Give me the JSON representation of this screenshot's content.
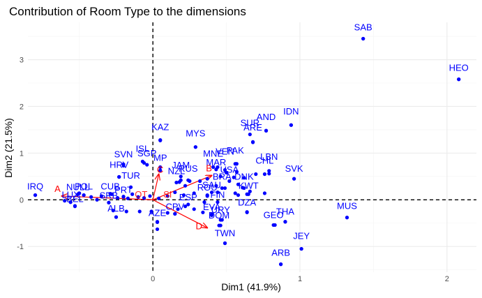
{
  "chart_data": {
    "type": "scatter",
    "title": "Contribution of Room Type to the dimensions",
    "xlabel": "Dim1 (41.9%)",
    "ylabel": "Dim2 (21.5%)",
    "xlim": [
      -0.85,
      2.2
    ],
    "ylim": [
      -1.55,
      3.8
    ],
    "x_ticks": [
      0,
      1,
      2
    ],
    "y_ticks": [
      -1,
      0,
      1,
      2,
      3
    ],
    "grid": true,
    "legend": "none",
    "colors": {
      "points": "#0000ff",
      "arrows": "#ff0000",
      "zero_lines": "#000000",
      "grid": "#ebebeb"
    },
    "points": [
      {
        "label": "SAB",
        "x": 1.43,
        "y": 3.45,
        "dx": 0,
        "dy": -12
      },
      {
        "label": "HEO",
        "x": 2.08,
        "y": 2.58,
        "dx": 0,
        "dy": -12
      },
      {
        "label": "MUS",
        "x": 1.32,
        "y": -0.38,
        "dx": 0,
        "dy": -12
      },
      {
        "label": "JEY",
        "x": 1.01,
        "y": -1.05,
        "dx": 0,
        "dy": -14
      },
      {
        "label": "ARB",
        "x": 0.87,
        "y": -1.38,
        "dx": 0,
        "dy": -12
      },
      {
        "label": "IDN",
        "x": 0.94,
        "y": 1.6,
        "dx": 0,
        "dy": -15
      },
      {
        "label": "AND",
        "x": 0.77,
        "y": 1.48,
        "dx": 0,
        "dy": -15
      },
      {
        "label": "SUR",
        "x": 0.66,
        "y": 1.4,
        "dx": 0,
        "dy": -12
      },
      {
        "label": "ARE",
        "x": 0.68,
        "y": 1.23,
        "dx": 0,
        "dy": -17
      },
      {
        "label": "MYS",
        "x": 0.29,
        "y": 1.13,
        "dx": 0,
        "dy": -15
      },
      {
        "label": "KAZ",
        "x": 0.05,
        "y": 1.27,
        "dx": 0,
        "dy": -15
      },
      {
        "label": "PAK",
        "x": 0.56,
        "y": 0.77,
        "dx": 0,
        "dy": -15
      },
      {
        "label": "MNE",
        "x": 0.41,
        "y": 0.7,
        "dx": 0,
        "dy": -15
      },
      {
        "label": "VEN",
        "x": 0.49,
        "y": 0.64,
        "dx": 0,
        "dy": -22
      },
      {
        "label": "LBN",
        "x": 0.79,
        "y": 0.62,
        "dx": 0,
        "dy": -16
      },
      {
        "label": "CHL",
        "x": 0.76,
        "y": 0.55,
        "dx": 0,
        "dy": -15
      },
      {
        "label": "SVK",
        "x": 0.96,
        "y": 0.45,
        "dx": 0,
        "dy": -10
      },
      {
        "label": "ISL",
        "x": -0.07,
        "y": 0.82,
        "dx": 0,
        "dy": -14
      },
      {
        "label": "SGP",
        "x": -0.04,
        "y": 0.75,
        "dx": 0,
        "dy": -12
      },
      {
        "label": "SVN",
        "x": -0.2,
        "y": 0.73,
        "dx": 0,
        "dy": -12
      },
      {
        "label": "MP",
        "x": 0.05,
        "y": 0.7,
        "dx": 0,
        "dy": -9
      },
      {
        "label": "HRV",
        "x": -0.23,
        "y": 0.49,
        "dx": 0,
        "dy": -13
      },
      {
        "label": "JAM",
        "x": 0.19,
        "y": 0.5,
        "dx": 0,
        "dy": -12
      },
      {
        "label": "RUS",
        "x": 0.24,
        "y": 0.42,
        "dx": 0,
        "dy": -12
      },
      {
        "label": "NZL",
        "x": 0.16,
        "y": 0.37,
        "dx": 0,
        "dy": -12
      },
      {
        "label": "USA",
        "x": 0.52,
        "y": 0.4,
        "dx": 0,
        "dy": -12
      },
      {
        "label": "TUR",
        "x": -0.15,
        "y": 0.27,
        "dx": 0,
        "dy": -12
      },
      {
        "label": "BRA",
        "x": 0.47,
        "y": 0.25,
        "dx": 0,
        "dy": -12
      },
      {
        "label": "DNK",
        "x": 0.62,
        "y": 0.25,
        "dx": 0,
        "dy": -12
      },
      {
        "label": "KWT",
        "x": 0.65,
        "y": 0.12,
        "dx": 0,
        "dy": -8
      },
      {
        "label": "DZA",
        "x": 0.64,
        "y": -0.27,
        "dx": 0,
        "dy": -10
      },
      {
        "label": "THA",
        "x": 0.9,
        "y": -0.47,
        "dx": 0,
        "dy": -10
      },
      {
        "label": "GEO",
        "x": 0.82,
        "y": -0.54,
        "dx": 0,
        "dy": -10
      },
      {
        "label": "URY",
        "x": 0.46,
        "y": -0.43,
        "dx": 0,
        "dy": -10
      },
      {
        "label": "DOM",
        "x": 0.45,
        "y": -0.55,
        "dx": 0,
        "dy": -10
      },
      {
        "label": "TWN",
        "x": 0.49,
        "y": -0.93,
        "dx": 0,
        "dy": -10
      },
      {
        "label": "FIN",
        "x": 0.44,
        "y": -0.05,
        "dx": 0,
        "dy": -6
      },
      {
        "label": "ROU",
        "x": 0.37,
        "y": 0.08,
        "dx": 0,
        "dy": -8
      },
      {
        "label": "CUB",
        "x": -0.29,
        "y": 0.13,
        "dx": 0,
        "dy": -6
      },
      {
        "label": "PRT",
        "x": -0.2,
        "y": 0.07,
        "dx": 0,
        "dy": -5
      },
      {
        "label": "POL",
        "x": -0.47,
        "y": 0.1,
        "dx": 0,
        "dy": -8
      },
      {
        "label": "NULL",
        "x": -0.51,
        "y": 0.12,
        "dx": 0,
        "dy": -6
      },
      {
        "label": "LUX",
        "x": -0.56,
        "y": -0.05,
        "dx": 0,
        "dy": -6
      },
      {
        "label": "BEL",
        "x": -0.53,
        "y": -0.14,
        "dx": 0,
        "dy": -6
      },
      {
        "label": "SRB",
        "x": -0.3,
        "y": -0.06,
        "dx": 0,
        "dy": -6
      },
      {
        "label": "ALB",
        "x": -0.25,
        "y": -0.37,
        "dx": 0,
        "dy": -8
      },
      {
        "label": "AZE",
        "x": 0.03,
        "y": -0.47,
        "dx": 0,
        "dy": -8
      },
      {
        "label": "CPV",
        "x": 0.15,
        "y": -0.3,
        "dx": 0,
        "dy": -6
      },
      {
        "label": "EVA",
        "x": 0.4,
        "y": -0.31,
        "dx": 0,
        "dy": -6
      },
      {
        "label": "ESP",
        "x": 0.24,
        "y": -0.1,
        "dx": 0,
        "dy": -6
      },
      {
        "label": "SAU",
        "x": 0.4,
        "y": 0.16,
        "dx": 0,
        "dy": -6
      },
      {
        "label": "MAR",
        "x": 0.43,
        "y": 0.65,
        "dx": 0,
        "dy": -6
      },
      {
        "label": "IRQ",
        "x": -0.8,
        "y": 0.1,
        "dx": 0,
        "dy": -8
      }
    ],
    "extra_points": [
      [
        1.43,
        3.45
      ],
      [
        2.08,
        2.58
      ],
      [
        1.32,
        -0.38
      ],
      [
        1.01,
        -1.05
      ],
      [
        0.87,
        -1.38
      ],
      [
        0.94,
        1.6
      ],
      [
        0.77,
        1.48
      ],
      [
        0.68,
        1.24
      ],
      [
        0.29,
        1.13
      ],
      [
        0.05,
        1.28
      ],
      [
        0.57,
        0.77
      ],
      [
        0.96,
        0.45
      ],
      [
        0.79,
        0.56
      ],
      [
        0.5,
        0.58
      ],
      [
        0.44,
        0.7
      ],
      [
        0.57,
        0.6
      ],
      [
        0.46,
        0.5
      ],
      [
        0.55,
        0.48
      ],
      [
        0.62,
        0.47
      ],
      [
        0.37,
        0.45
      ],
      [
        0.32,
        0.4
      ],
      [
        0.25,
        0.4
      ],
      [
        0.18,
        0.38
      ],
      [
        0.58,
        0.33
      ],
      [
        0.49,
        0.25
      ],
      [
        0.43,
        0.3
      ],
      [
        0.61,
        0.26
      ],
      [
        0.66,
        0.18
      ],
      [
        0.56,
        0.14
      ],
      [
        0.44,
        0.16
      ],
      [
        0.37,
        0.1
      ],
      [
        0.28,
        0.14
      ],
      [
        0.21,
        0.1
      ],
      [
        0.15,
        0.16
      ],
      [
        0.1,
        0.08
      ],
      [
        0.04,
        0.03
      ],
      [
        -0.02,
        0.08
      ],
      [
        -0.06,
        0.04
      ],
      [
        -0.1,
        0.06
      ],
      [
        -0.14,
        0.12
      ],
      [
        -0.17,
        0.03
      ],
      [
        -0.2,
        0.06
      ],
      [
        -0.24,
        0.04
      ],
      [
        -0.28,
        0.12
      ],
      [
        -0.3,
        -0.06
      ],
      [
        -0.35,
        0.08
      ],
      [
        -0.38,
        0.0
      ],
      [
        -0.42,
        0.06
      ],
      [
        -0.47,
        0.1
      ],
      [
        -0.5,
        0.14
      ],
      [
        -0.53,
        -0.13
      ],
      [
        -0.56,
        -0.05
      ],
      [
        -0.6,
        -0.02
      ],
      [
        -0.27,
        -0.23
      ],
      [
        -0.25,
        -0.37
      ],
      [
        -0.18,
        -0.25
      ],
      [
        -0.09,
        -0.25
      ],
      [
        -0.01,
        -0.25
      ],
      [
        0.03,
        -0.48
      ],
      [
        0.03,
        -0.63
      ],
      [
        0.1,
        -0.28
      ],
      [
        0.15,
        -0.3
      ],
      [
        0.17,
        -0.2
      ],
      [
        0.22,
        -0.14
      ],
      [
        0.28,
        -0.2
      ],
      [
        0.34,
        -0.27
      ],
      [
        0.4,
        -0.33
      ],
      [
        0.47,
        -0.43
      ],
      [
        0.46,
        -0.55
      ],
      [
        0.49,
        -0.93
      ],
      [
        0.64,
        -0.26
      ],
      [
        0.83,
        -0.54
      ],
      [
        0.9,
        -0.47
      ],
      [
        0.64,
        0.12
      ],
      [
        0.76,
        0.14
      ],
      [
        0.7,
        0.55
      ],
      [
        0.58,
        0.1
      ],
      [
        0.35,
        -0.05
      ],
      [
        0.22,
        0.3
      ],
      [
        -0.23,
        0.49
      ],
      [
        -0.2,
        0.76
      ],
      [
        -0.06,
        0.79
      ],
      [
        0.05,
        0.63
      ],
      [
        0.19,
        0.42
      ],
      [
        -0.8,
        0.1
      ]
    ],
    "variables": [
      {
        "label": "A",
        "x": -0.62,
        "y": 0.08
      },
      {
        "label": "C",
        "x": 0.04,
        "y": 0.55
      },
      {
        "label": "B",
        "x": 0.4,
        "y": 0.52
      },
      {
        "label": "D",
        "x": 0.37,
        "y": -0.6
      }
    ],
    "variable_overlaps": [
      "OT",
      "SI"
    ]
  }
}
